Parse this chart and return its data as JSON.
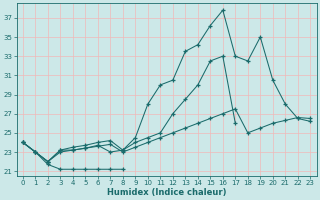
{
  "title": "",
  "xlabel": "Humidex (Indice chaleur)",
  "bg_color": "#cce8e8",
  "grid_color": "#f0b8b8",
  "line_color": "#1a6b6b",
  "xlim": [
    -0.5,
    23.5
  ],
  "ylim": [
    20.5,
    38.5
  ],
  "xticks": [
    0,
    1,
    2,
    3,
    4,
    5,
    6,
    7,
    8,
    9,
    10,
    11,
    12,
    13,
    14,
    15,
    16,
    17,
    18,
    19,
    20,
    21,
    22,
    23
  ],
  "yticks": [
    21,
    23,
    25,
    27,
    29,
    31,
    33,
    35,
    37
  ],
  "s1_x": [
    0,
    1,
    2,
    3,
    4,
    5,
    6,
    7,
    8
  ],
  "s1_y": [
    24.0,
    23.0,
    21.7,
    21.2,
    21.2,
    21.2,
    21.2,
    21.2,
    21.2
  ],
  "s2_x": [
    0,
    1,
    2,
    3,
    4,
    5,
    6,
    7,
    8,
    9,
    10,
    11,
    12,
    13,
    14,
    15,
    16,
    17
  ],
  "s2_y": [
    24.0,
    23.0,
    22.0,
    23.2,
    23.2,
    23.4,
    23.7,
    23.0,
    23.2,
    24.0,
    24.5,
    25.0,
    27.0,
    28.5,
    30.0,
    32.5,
    33.0,
    26.0
  ],
  "s3_x": [
    0,
    1,
    2,
    3,
    4,
    5,
    6,
    7,
    8,
    9,
    10,
    11,
    12,
    13,
    14,
    15,
    16,
    17,
    18,
    19,
    20,
    21,
    22,
    23
  ],
  "s3_y": [
    24.0,
    23.0,
    22.0,
    23.2,
    23.5,
    23.7,
    24.0,
    24.2,
    23.2,
    24.5,
    28.0,
    30.0,
    30.5,
    33.5,
    34.2,
    36.2,
    37.8,
    33.0,
    32.5,
    35.0,
    30.5,
    28.0,
    26.5,
    26.2
  ],
  "s4_x": [
    0,
    1,
    2,
    3,
    4,
    5,
    6,
    7,
    8,
    9,
    10,
    11,
    12,
    13,
    14,
    15,
    16,
    17,
    18,
    19,
    20,
    21,
    22,
    23
  ],
  "s4_y": [
    24.0,
    23.0,
    22.0,
    23.0,
    23.2,
    23.4,
    23.6,
    23.8,
    23.0,
    23.5,
    24.0,
    24.5,
    25.0,
    25.5,
    26.0,
    26.5,
    27.0,
    27.5,
    25.0,
    25.5,
    26.0,
    26.3,
    26.6,
    26.5
  ]
}
